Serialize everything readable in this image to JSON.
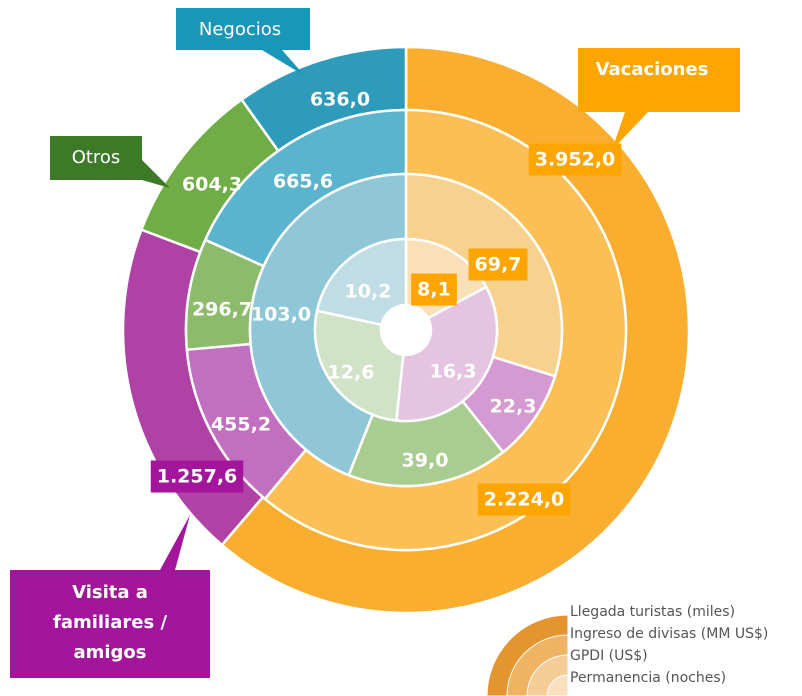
{
  "chart_data": {
    "type": "donut",
    "categories": [
      "Vacaciones",
      "Visita a familiares / amigos",
      "Otros",
      "Negocios"
    ],
    "series": [
      {
        "name": "Llegada turistas (miles)",
        "colors": [
          "#f9ae2f",
          "#b142a5",
          "#70ad47",
          "#2e9bbb"
        ],
        "values": [
          3952.0,
          1257.6,
          604.3,
          636.0
        ],
        "value_labels": [
          "3.952,0",
          "1.257,6",
          "604,3",
          "636,0"
        ]
      },
      {
        "name": "Ingreso de divisas (MM US$)",
        "colors": [
          "#fbbf55",
          "#c16fbf",
          "#8dbb6c",
          "#5ab4cd"
        ],
        "values": [
          2224.0,
          455.2,
          296.7,
          665.6
        ],
        "value_labels": [
          "2.224,0",
          "455,2",
          "296,7",
          "665,6"
        ]
      },
      {
        "name": "GPDI (US$)",
        "colors": [
          "#f9d18f",
          "#d59ad1",
          "#a9cc91",
          "#8fc7d7"
        ],
        "values": [
          69.7,
          22.3,
          39.0,
          103.0
        ],
        "value_labels": [
          "69,7",
          "22,3",
          "39,0",
          "103,0"
        ]
      },
      {
        "name": "Permanencia (noches)",
        "colors": [
          "#fae0b7",
          "#e5c4e2",
          "#d0e3c7",
          "#c0dde5"
        ],
        "values": [
          8.1,
          16.3,
          12.6,
          10.2
        ],
        "value_labels": [
          "8,1",
          "16,3",
          "12,6",
          "10,2"
        ]
      }
    ]
  }
}
